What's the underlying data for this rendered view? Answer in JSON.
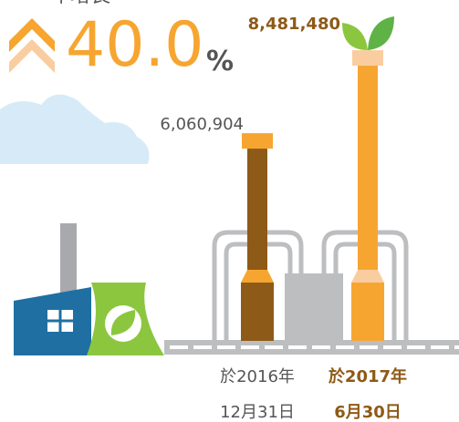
{
  "chart_data": {
    "type": "bar",
    "headline": {
      "label": "年增長",
      "value_text": "40.0",
      "unit": "%"
    },
    "categories": [
      "於2016年\n12月31日",
      "於2017年\n6月30日"
    ],
    "values": [
      6060904,
      8481480
    ],
    "value_labels": [
      "6,060,904",
      "8,481,480"
    ],
    "colors": [
      "#8e5a17",
      "#f7a531"
    ],
    "ylim": [
      0,
      10000000
    ]
  }
}
